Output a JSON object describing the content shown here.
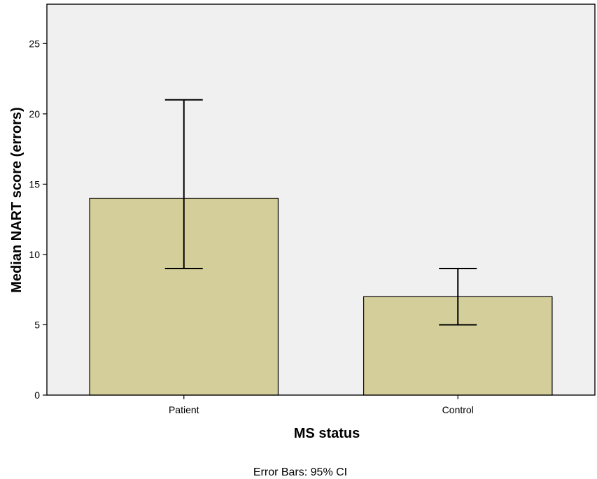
{
  "chart_data": {
    "type": "bar",
    "categories": [
      "Patient",
      "Control"
    ],
    "values": [
      14,
      7
    ],
    "error_bars": [
      {
        "low": 9,
        "high": 21
      },
      {
        "low": 5,
        "high": 9
      }
    ],
    "xlabel": "MS status",
    "ylabel": "Median NART score (errors)",
    "ylim": [
      0,
      27.8
    ],
    "yticks": [
      0,
      5,
      10,
      15,
      20,
      25
    ],
    "grid": false,
    "footnote": "Error Bars: 95% CI",
    "colors": {
      "plot_background": "#f0f0f0",
      "bar_fill": "#d4cf9a",
      "bar_stroke": "#000000"
    }
  }
}
